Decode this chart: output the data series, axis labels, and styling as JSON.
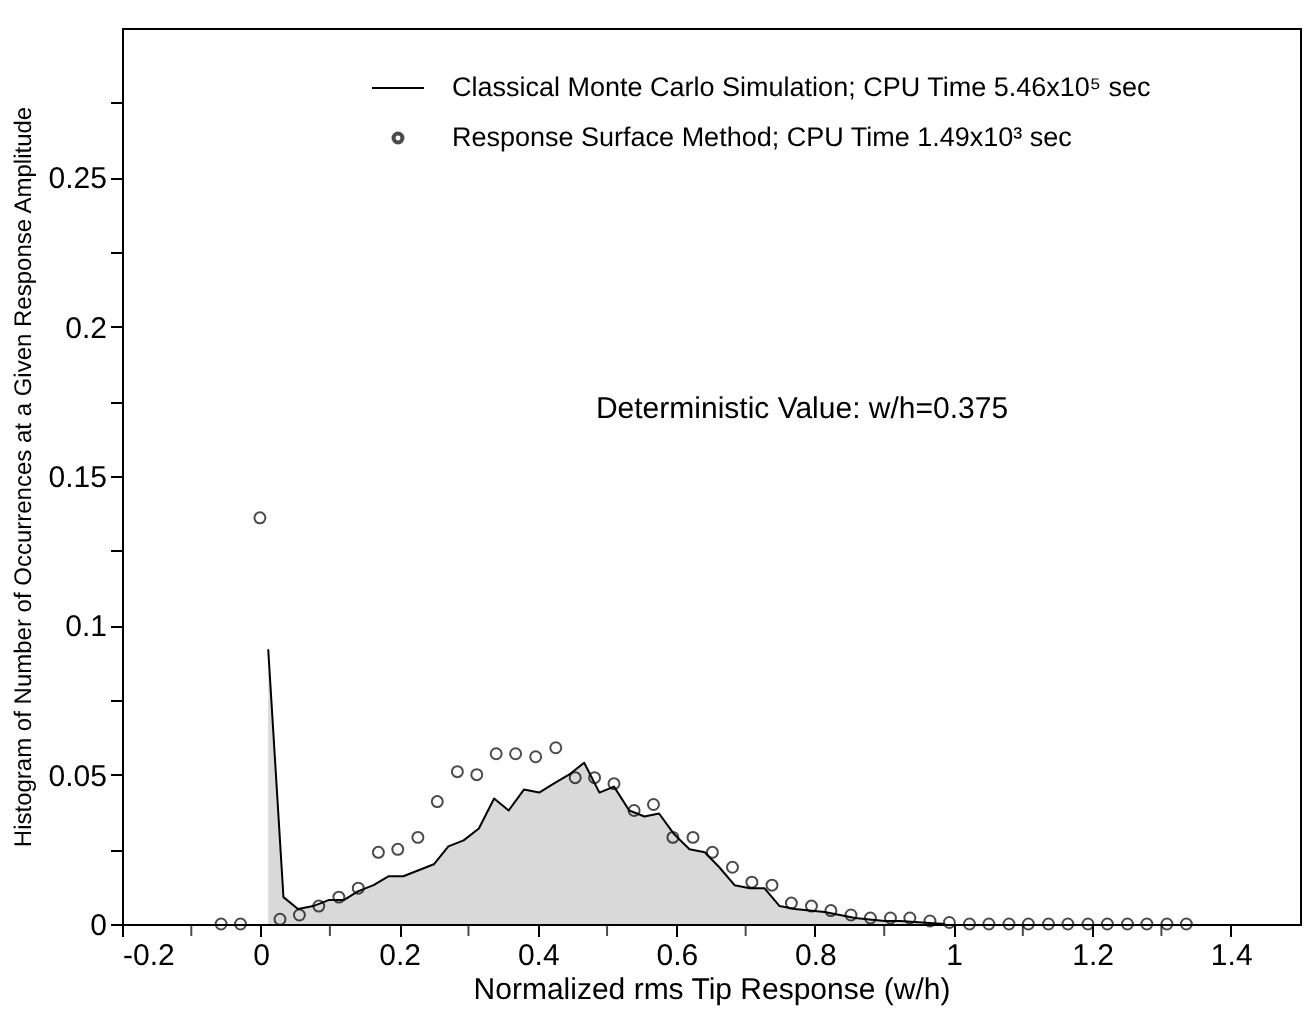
{
  "chart_data": {
    "type": "line",
    "xlabel": "Normalized rms Tip Response (w/h)",
    "ylabel": "Histogram of Number of Occurrences at a Given Response Amplitude",
    "annotations": [
      "Deterministic Value: w/h=0.375"
    ],
    "xlim": [
      -0.2,
      1.5
    ],
    "ylim": [
      0,
      0.3
    ],
    "xticks": [
      -0.2,
      {
        "value": -0.1,
        "label": null
      },
      0,
      {
        "value": 0.1,
        "label": null
      },
      0.2,
      {
        "value": 0.3,
        "label": null
      },
      0.4,
      {
        "value": 0.5,
        "label": null
      },
      0.6,
      {
        "value": 0.7,
        "label": null
      },
      0.8,
      {
        "value": 0.9,
        "label": null
      },
      1,
      {
        "value": 1.1,
        "label": null
      },
      1.2,
      {
        "value": 1.3,
        "label": null
      },
      1.4
    ],
    "yticks": [
      0,
      {
        "value": 0.025,
        "label": null
      },
      0.05,
      {
        "value": 0.075,
        "label": null
      },
      0.1,
      {
        "value": 0.125,
        "label": null
      },
      0.15,
      {
        "value": 0.175,
        "label": null
      },
      0.2,
      {
        "value": 0.225,
        "label": null
      },
      0.25,
      {
        "value": 0.275,
        "label": null
      }
    ],
    "grid": false,
    "legend": "top right",
    "series": [
      {
        "name": "Classical Monte Carlo Simulation; CPU Time 5.46x10⁵ sec",
        "color": "#000000",
        "type": "area",
        "marker": "none",
        "line_style": "solid",
        "x": [
          0.011,
          0.033,
          0.054,
          0.076,
          0.098,
          0.12,
          0.141,
          0.163,
          0.185,
          0.206,
          0.228,
          0.25,
          0.271,
          0.293,
          0.315,
          0.337,
          0.358,
          0.38,
          0.402,
          0.423,
          0.445,
          0.467,
          0.489,
          0.51,
          0.532,
          0.554,
          0.575,
          0.597,
          0.619,
          0.641,
          0.662,
          0.684,
          0.706,
          0.727,
          0.749,
          0.771,
          0.792,
          0.814,
          0.836,
          0.858,
          0.879,
          0.901,
          0.923,
          0.944,
          0.966,
          0.988
        ],
        "values": [
          0.092,
          0.009,
          0.005,
          0.006,
          0.008,
          0.008,
          0.011,
          0.013,
          0.016,
          0.016,
          0.018,
          0.02,
          0.026,
          0.028,
          0.032,
          0.042,
          0.038,
          0.045,
          0.044,
          0.047,
          0.05,
          0.054,
          0.044,
          0.046,
          0.038,
          0.036,
          0.037,
          0.03,
          0.025,
          0.024,
          0.019,
          0.013,
          0.012,
          0.012,
          0.006,
          0.005,
          0.0045,
          0.004,
          0.003,
          0.002,
          0.0015,
          0.001,
          0.001,
          0.0007,
          0.0003,
          0
        ]
      },
      {
        "name": "Response Surface Method; CPU Time 1.49x10³ sec",
        "color": "#000000",
        "type": "scatter",
        "marker": "circle",
        "x": [
          -0.057,
          -0.029,
          -0.001,
          0.028,
          0.056,
          0.084,
          0.113,
          0.141,
          0.17,
          0.198,
          0.227,
          0.255,
          0.284,
          0.312,
          0.34,
          0.368,
          0.397,
          0.426,
          0.454,
          0.482,
          0.51,
          0.539,
          0.567,
          0.595,
          0.624,
          0.652,
          0.681,
          0.709,
          0.738,
          0.766,
          0.795,
          0.823,
          0.852,
          0.88,
          0.909,
          0.937,
          0.966,
          0.994,
          1.023,
          1.051,
          1.08,
          1.108,
          1.137,
          1.165,
          1.194,
          1.222,
          1.251,
          1.279,
          1.308,
          1.336
        ],
        "values": [
          0,
          0,
          0.136,
          0.0016,
          0.003,
          0.006,
          0.009,
          0.012,
          0.024,
          0.025,
          0.029,
          0.041,
          0.051,
          0.05,
          0.057,
          0.057,
          0.056,
          0.059,
          0.049,
          0.049,
          0.047,
          0.038,
          0.04,
          0.029,
          0.029,
          0.024,
          0.019,
          0.014,
          0.013,
          0.007,
          0.006,
          0.0045,
          0.003,
          0.002,
          0.002,
          0.002,
          0.001,
          0.0005,
          0,
          0,
          0,
          0,
          0,
          0,
          0,
          0,
          0,
          0,
          0,
          0
        ]
      }
    ]
  }
}
